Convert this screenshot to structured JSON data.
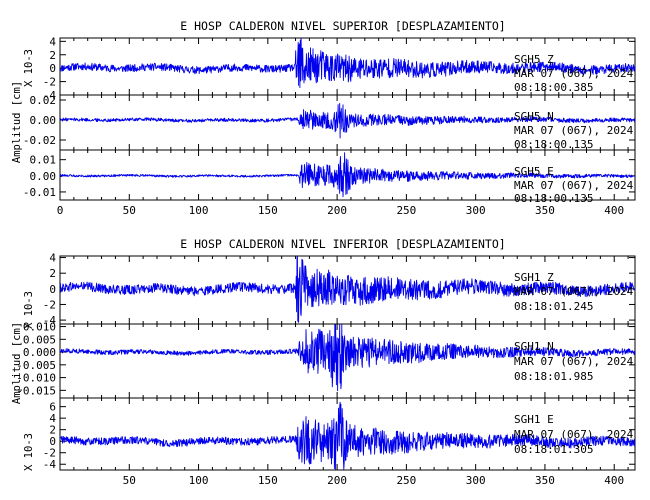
{
  "chart_data": [
    {
      "type": "line",
      "title": "E HOSP CALDERON NIVEL SUPERIOR [DESPLAZAMIENTO]",
      "xlim": [
        0,
        415
      ],
      "xticks": [
        "0",
        "50",
        "100",
        "150",
        "200",
        "250",
        "300",
        "350",
        "400"
      ],
      "ylabel": "Amplitud [cm]",
      "grid": false,
      "panels": [
        {
          "ylim": [
            -4,
            4.5
          ],
          "yticks": [
            "4",
            "2",
            "0",
            "-2",
            "-4"
          ],
          "ylabel": "X 10-3",
          "station": "SGH5   Z",
          "date": "MAR 07 (067), 2024",
          "time": "08:18:00.385",
          "onset": 170,
          "peak_time": 172,
          "peak": 4.2,
          "noise": 0.5
        },
        {
          "ylim": [
            -0.03,
            0.025
          ],
          "yticks": [
            "0.02",
            "0.00",
            "-0.02"
          ],
          "ylabel": "",
          "station": "SGH5   N",
          "date": "MAR 07 (067), 2024",
          "time": "08:18:00.135",
          "onset": 172,
          "peak_time": 203,
          "peak": 0.016,
          "noise": 0.0015
        },
        {
          "ylim": [
            -0.015,
            0.016
          ],
          "yticks": [
            "0.01",
            "0.00",
            "-0.01"
          ],
          "ylabel": "",
          "station": "SGH5   E",
          "date": "MAR 07 (067), 2024",
          "time": "08:18:00.135",
          "onset": 172,
          "peak_time": 205,
          "peak": 0.014,
          "noise": 0.0006
        }
      ]
    },
    {
      "type": "line",
      "title": "E HOSP CALDERON NIVEL INFERIOR [DESPLAZAMIENTO]",
      "xlim": [
        0,
        415
      ],
      "xticks": [
        "50",
        "100",
        "150",
        "200",
        "250",
        "300",
        "350",
        "400"
      ],
      "ylabel": "Amplitud [cm]",
      "grid": false,
      "panels": [
        {
          "ylim": [
            -4.5,
            4.2
          ],
          "yticks": [
            "4",
            "2",
            "0",
            "-2",
            "-4"
          ],
          "ylabel": "X 10-3",
          "station": "SGH1   Z",
          "date": "MAR 07 (067), 2024",
          "time": "08:18:01.245",
          "onset": 170,
          "peak_time": 172,
          "peak": 4.0,
          "noise": 0.55
        },
        {
          "ylim": [
            -0.018,
            0.011
          ],
          "yticks": [
            "0.010",
            "0.005",
            "0.000",
            "-0.005",
            "-0.010",
            "-0.015"
          ],
          "ylabel": "",
          "station": "SGH1   N",
          "date": "MAR 07 (067), 2024",
          "time": "08:18:01.985",
          "onset": 172,
          "peak_time": 200,
          "peak": 0.017,
          "noise": 0.0008
        },
        {
          "ylim": [
            -5,
            7.5
          ],
          "yticks": [
            "6",
            "4",
            "2",
            "0",
            "-2",
            "-4"
          ],
          "ylabel": "X 10-3",
          "station": "SGH1   E",
          "date": "MAR 07 (067), 2024",
          "time": "08:18:01.305",
          "onset": 170,
          "peak_time": 202,
          "peak": 6.5,
          "noise": 0.6
        }
      ]
    }
  ]
}
